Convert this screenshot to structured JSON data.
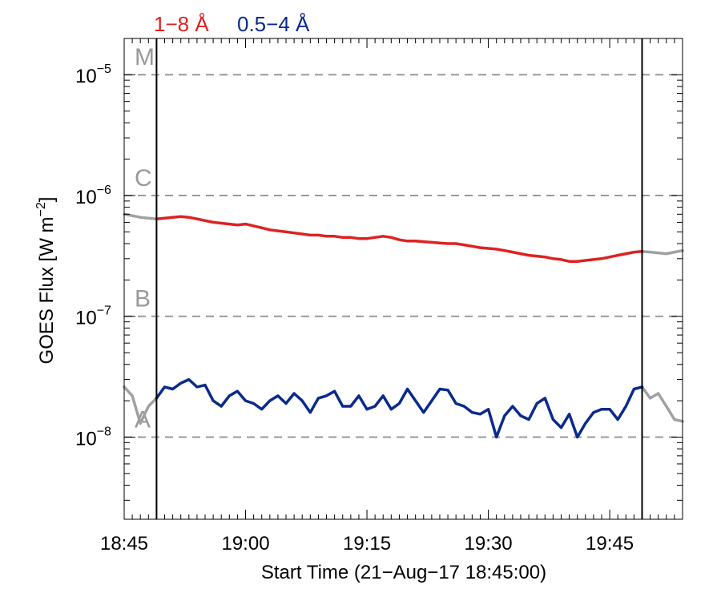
{
  "chart_data": {
    "type": "line",
    "legend": [
      {
        "label": "1−8 Å",
        "color": "#dd2222"
      },
      {
        "label": "0.5−4 Å",
        "color": "#0a2a8c"
      }
    ],
    "xlabel": "Start Time (21−Aug−17 18:45:00)",
    "ylabel_main": "GOES Flux [W m",
    "ylabel_sup": "−2",
    "ylabel_close": "]",
    "xlim_minutes_after_18_45": [
      0,
      69
    ],
    "x_ticks": [
      {
        "t": 0,
        "label": "18:45"
      },
      {
        "t": 15,
        "label": "19:00"
      },
      {
        "t": 30,
        "label": "19:15"
      },
      {
        "t": 45,
        "label": "19:30"
      },
      {
        "t": 60,
        "label": "19:45"
      }
    ],
    "ylim_log10": [
      -8.68,
      -4.7
    ],
    "y_scale": "log",
    "y_ticks": [
      {
        "exp": -8,
        "base": "10",
        "sup": "−8"
      },
      {
        "exp": -7,
        "base": "10",
        "sup": "−7"
      },
      {
        "exp": -6,
        "base": "10",
        "sup": "−6"
      },
      {
        "exp": -5,
        "base": "10",
        "sup": "−5"
      }
    ],
    "flare_classes": [
      {
        "label": "A",
        "exp": -8
      },
      {
        "label": "B",
        "exp": -7
      },
      {
        "label": "C",
        "exp": -6
      },
      {
        "label": "M",
        "exp": -5
      }
    ],
    "selection_window_minutes": [
      4,
      64
    ],
    "series": [
      {
        "name": "1−8 Å",
        "color": "#dd2222",
        "outside_color": "#a0a0a0",
        "points": [
          [
            0,
            7e-07
          ],
          [
            1,
            6.8e-07
          ],
          [
            2,
            6.6e-07
          ],
          [
            3,
            6.5e-07
          ],
          [
            4,
            6.4e-07
          ],
          [
            5,
            6.5e-07
          ],
          [
            6,
            6.6e-07
          ],
          [
            7,
            6.7e-07
          ],
          [
            8,
            6.6e-07
          ],
          [
            9,
            6.4e-07
          ],
          [
            10,
            6.2e-07
          ],
          [
            11,
            6e-07
          ],
          [
            12,
            5.9e-07
          ],
          [
            13,
            5.8e-07
          ],
          [
            14,
            5.7e-07
          ],
          [
            15,
            5.8e-07
          ],
          [
            16,
            5.6e-07
          ],
          [
            17,
            5.4e-07
          ],
          [
            18,
            5.2e-07
          ],
          [
            19,
            5.1e-07
          ],
          [
            20,
            5e-07
          ],
          [
            21,
            4.9e-07
          ],
          [
            22,
            4.8e-07
          ],
          [
            23,
            4.7e-07
          ],
          [
            24,
            4.7e-07
          ],
          [
            25,
            4.6e-07
          ],
          [
            26,
            4.6e-07
          ],
          [
            27,
            4.5e-07
          ],
          [
            28,
            4.5e-07
          ],
          [
            29,
            4.4e-07
          ],
          [
            30,
            4.4e-07
          ],
          [
            31,
            4.5e-07
          ],
          [
            32,
            4.6e-07
          ],
          [
            33,
            4.5e-07
          ],
          [
            34,
            4.3e-07
          ],
          [
            35,
            4.2e-07
          ],
          [
            36,
            4.2e-07
          ],
          [
            37,
            4.15e-07
          ],
          [
            38,
            4.1e-07
          ],
          [
            39,
            4.05e-07
          ],
          [
            40,
            4e-07
          ],
          [
            41,
            4e-07
          ],
          [
            42,
            3.9e-07
          ],
          [
            43,
            3.8e-07
          ],
          [
            44,
            3.7e-07
          ],
          [
            45,
            3.65e-07
          ],
          [
            46,
            3.6e-07
          ],
          [
            47,
            3.5e-07
          ],
          [
            48,
            3.4e-07
          ],
          [
            49,
            3.3e-07
          ],
          [
            50,
            3.2e-07
          ],
          [
            51,
            3.15e-07
          ],
          [
            52,
            3.1e-07
          ],
          [
            53,
            3e-07
          ],
          [
            54,
            2.95e-07
          ],
          [
            55,
            2.85e-07
          ],
          [
            56,
            2.85e-07
          ],
          [
            57,
            2.9e-07
          ],
          [
            58,
            2.95e-07
          ],
          [
            59,
            3e-07
          ],
          [
            60,
            3.1e-07
          ],
          [
            61,
            3.2e-07
          ],
          [
            62,
            3.3e-07
          ],
          [
            63,
            3.4e-07
          ],
          [
            64,
            3.45e-07
          ],
          [
            65,
            3.4e-07
          ],
          [
            66,
            3.35e-07
          ],
          [
            67,
            3.3e-07
          ],
          [
            68,
            3.4e-07
          ],
          [
            69,
            3.5e-07
          ]
        ]
      },
      {
        "name": "0.5−4 Å",
        "color": "#0a2a8c",
        "outside_color": "#a0a0a0",
        "points": [
          [
            0,
            2.6e-08
          ],
          [
            1,
            2.2e-08
          ],
          [
            2,
            1.3e-08
          ],
          [
            3,
            1.8e-08
          ],
          [
            4,
            2.1e-08
          ],
          [
            5,
            2.6e-08
          ],
          [
            6,
            2.5e-08
          ],
          [
            7,
            2.8e-08
          ],
          [
            8,
            3e-08
          ],
          [
            9,
            2.6e-08
          ],
          [
            10,
            2.7e-08
          ],
          [
            11,
            2e-08
          ],
          [
            12,
            1.8e-08
          ],
          [
            13,
            2.2e-08
          ],
          [
            14,
            2.4e-08
          ],
          [
            15,
            2e-08
          ],
          [
            16,
            1.9e-08
          ],
          [
            17,
            1.7e-08
          ],
          [
            18,
            2e-08
          ],
          [
            19,
            2.2e-08
          ],
          [
            20,
            1.9e-08
          ],
          [
            21,
            2.3e-08
          ],
          [
            22,
            2e-08
          ],
          [
            23,
            1.6e-08
          ],
          [
            24,
            2.1e-08
          ],
          [
            25,
            2.2e-08
          ],
          [
            26,
            2.4e-08
          ],
          [
            27,
            1.8e-08
          ],
          [
            28,
            1.8e-08
          ],
          [
            29,
            2.2e-08
          ],
          [
            30,
            1.7e-08
          ],
          [
            31,
            1.8e-08
          ],
          [
            32,
            2.2e-08
          ],
          [
            33,
            1.7e-08
          ],
          [
            34,
            1.9e-08
          ],
          [
            35,
            2.5e-08
          ],
          [
            36,
            2e-08
          ],
          [
            37,
            1.6e-08
          ],
          [
            38,
            2e-08
          ],
          [
            39,
            2.5e-08
          ],
          [
            40,
            2.45e-08
          ],
          [
            41,
            1.9e-08
          ],
          [
            42,
            1.8e-08
          ],
          [
            43,
            1.6e-08
          ],
          [
            44,
            1.55e-08
          ],
          [
            45,
            1.7e-08
          ],
          [
            46,
            1e-08
          ],
          [
            47,
            1.5e-08
          ],
          [
            48,
            1.8e-08
          ],
          [
            49,
            1.5e-08
          ],
          [
            50,
            1.4e-08
          ],
          [
            51,
            1.9e-08
          ],
          [
            52,
            2.1e-08
          ],
          [
            53,
            1.4e-08
          ],
          [
            54,
            1.2e-08
          ],
          [
            55,
            1.55e-08
          ],
          [
            56,
            1e-08
          ],
          [
            57,
            1.3e-08
          ],
          [
            58,
            1.6e-08
          ],
          [
            59,
            1.7e-08
          ],
          [
            60,
            1.7e-08
          ],
          [
            61,
            1.4e-08
          ],
          [
            62,
            1.8e-08
          ],
          [
            63,
            2.5e-08
          ],
          [
            64,
            2.6e-08
          ],
          [
            65,
            2.1e-08
          ],
          [
            66,
            2.3e-08
          ],
          [
            67,
            1.8e-08
          ],
          [
            68,
            1.4e-08
          ],
          [
            69,
            1.35e-08
          ]
        ]
      }
    ]
  }
}
